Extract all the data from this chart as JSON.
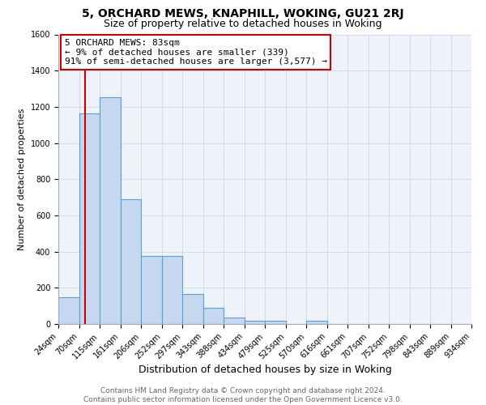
{
  "title": "5, ORCHARD MEWS, KNAPHILL, WOKING, GU21 2RJ",
  "subtitle": "Size of property relative to detached houses in Woking",
  "xlabel": "Distribution of detached houses by size in Woking",
  "ylabel": "Number of detached properties",
  "bar_edges": [
    24,
    70,
    115,
    161,
    206,
    252,
    297,
    343,
    388,
    434,
    479,
    525,
    570,
    616,
    661,
    707,
    752,
    798,
    843,
    889,
    934
  ],
  "bar_heights": [
    148,
    1165,
    1255,
    690,
    375,
    375,
    165,
    90,
    35,
    20,
    20,
    0,
    20,
    0,
    0,
    0,
    0,
    0,
    0,
    0
  ],
  "bar_color": "#c5d8f0",
  "bar_edge_color": "#5a9fd4",
  "bar_linewidth": 0.8,
  "vline_x": 83,
  "vline_color": "#cc0000",
  "vline_linewidth": 1.5,
  "annotation_title": "5 ORCHARD MEWS: 83sqm",
  "annotation_line1": "← 9% of detached houses are smaller (339)",
  "annotation_line2": "91% of semi-detached houses are larger (3,577) →",
  "annotation_box_color": "#ffffff",
  "annotation_box_edge": "#cc0000",
  "ylim": [
    0,
    1600
  ],
  "yticks": [
    0,
    200,
    400,
    600,
    800,
    1000,
    1200,
    1400,
    1600
  ],
  "x_tick_labels": [
    "24sqm",
    "70sqm",
    "115sqm",
    "161sqm",
    "206sqm",
    "252sqm",
    "297sqm",
    "343sqm",
    "388sqm",
    "434sqm",
    "479sqm",
    "525sqm",
    "570sqm",
    "616sqm",
    "661sqm",
    "707sqm",
    "752sqm",
    "798sqm",
    "843sqm",
    "889sqm",
    "934sqm"
  ],
  "grid_color": "#d0dce8",
  "background_color": "#eef3fa",
  "footer_line1": "Contains HM Land Registry data © Crown copyright and database right 2024.",
  "footer_line2": "Contains public sector information licensed under the Open Government Licence v3.0.",
  "title_fontsize": 10,
  "subtitle_fontsize": 9,
  "xlabel_fontsize": 9,
  "ylabel_fontsize": 8,
  "tick_fontsize": 7,
  "annotation_fontsize": 8,
  "footer_fontsize": 6.5
}
